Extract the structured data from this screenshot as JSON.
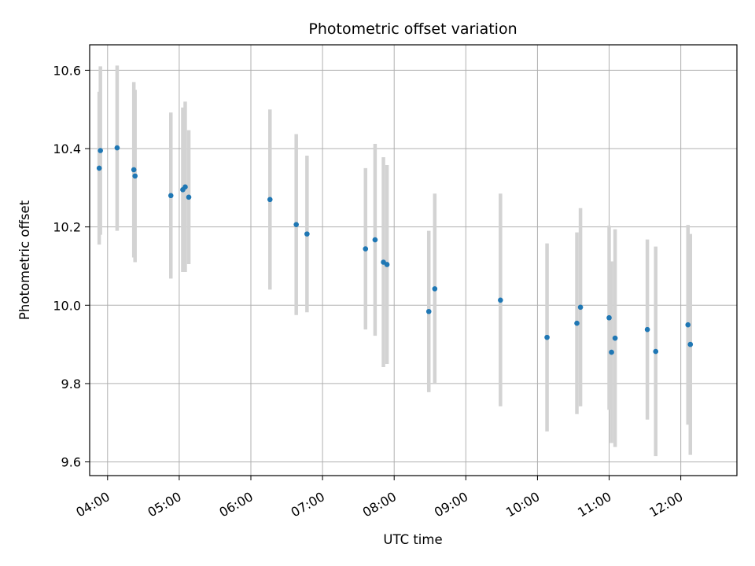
{
  "chart_data": {
    "type": "scatter",
    "title": "Photometric offset variation",
    "xlabel": "UTC time",
    "ylabel": "Photometric offset",
    "xlim": [
      "03:45",
      "12:47"
    ],
    "ylim": [
      9.565,
      10.665
    ],
    "grid": true,
    "x_ticks": [
      "04:00",
      "05:00",
      "06:00",
      "07:00",
      "08:00",
      "09:00",
      "10:00",
      "11:00",
      "12:00"
    ],
    "y_ticks": [
      "9.6",
      "9.8",
      "10.0",
      "10.2",
      "10.4",
      "10.6"
    ],
    "marker_color": "#1f77b4",
    "errorbar_color": "#d3d3d3",
    "points": [
      {
        "time": "03:54",
        "y": 10.395,
        "y_low": 10.18,
        "y_high": 10.61
      },
      {
        "time": "03:53",
        "y": 10.35,
        "y_low": 10.155,
        "y_high": 10.545
      },
      {
        "time": "04:08",
        "y": 10.402,
        "y_low": 10.19,
        "y_high": 10.612
      },
      {
        "time": "04:22",
        "y": 10.346,
        "y_low": 10.122,
        "y_high": 10.57
      },
      {
        "time": "04:23",
        "y": 10.33,
        "y_low": 10.11,
        "y_high": 10.55
      },
      {
        "time": "04:53",
        "y": 10.28,
        "y_low": 10.068,
        "y_high": 10.492
      },
      {
        "time": "05:03",
        "y": 10.295,
        "y_low": 10.085,
        "y_high": 10.505
      },
      {
        "time": "05:05",
        "y": 10.302,
        "y_low": 10.085,
        "y_high": 10.52
      },
      {
        "time": "05:08",
        "y": 10.276,
        "y_low": 10.105,
        "y_high": 10.447
      },
      {
        "time": "06:16",
        "y": 10.27,
        "y_low": 10.04,
        "y_high": 10.5
      },
      {
        "time": "06:38",
        "y": 10.206,
        "y_low": 9.975,
        "y_high": 10.437
      },
      {
        "time": "06:47",
        "y": 10.182,
        "y_low": 9.982,
        "y_high": 10.382
      },
      {
        "time": "07:36",
        "y": 10.144,
        "y_low": 9.938,
        "y_high": 10.35
      },
      {
        "time": "07:44",
        "y": 10.167,
        "y_low": 9.922,
        "y_high": 10.412
      },
      {
        "time": "07:51",
        "y": 10.11,
        "y_low": 9.842,
        "y_high": 10.378
      },
      {
        "time": "07:54",
        "y": 10.104,
        "y_low": 9.85,
        "y_high": 10.358
      },
      {
        "time": "08:29",
        "y": 9.984,
        "y_low": 9.778,
        "y_high": 10.19
      },
      {
        "time": "08:34",
        "y": 10.042,
        "y_low": 9.8,
        "y_high": 10.285
      },
      {
        "time": "09:29",
        "y": 10.013,
        "y_low": 9.742,
        "y_high": 10.285
      },
      {
        "time": "10:08",
        "y": 9.918,
        "y_low": 9.678,
        "y_high": 10.158
      },
      {
        "time": "10:33",
        "y": 9.954,
        "y_low": 9.722,
        "y_high": 10.186
      },
      {
        "time": "10:36",
        "y": 9.995,
        "y_low": 9.742,
        "y_high": 10.248
      },
      {
        "time": "11:00",
        "y": 9.968,
        "y_low": 9.733,
        "y_high": 10.203
      },
      {
        "time": "11:02",
        "y": 9.88,
        "y_low": 9.648,
        "y_high": 10.112
      },
      {
        "time": "11:05",
        "y": 9.916,
        "y_low": 9.638,
        "y_high": 10.194
      },
      {
        "time": "11:32",
        "y": 9.938,
        "y_low": 9.708,
        "y_high": 10.168
      },
      {
        "time": "11:39",
        "y": 9.882,
        "y_low": 9.615,
        "y_high": 10.15
      },
      {
        "time": "12:06",
        "y": 9.95,
        "y_low": 9.695,
        "y_high": 10.205
      },
      {
        "time": "12:08",
        "y": 9.9,
        "y_low": 9.618,
        "y_high": 10.182
      }
    ]
  }
}
